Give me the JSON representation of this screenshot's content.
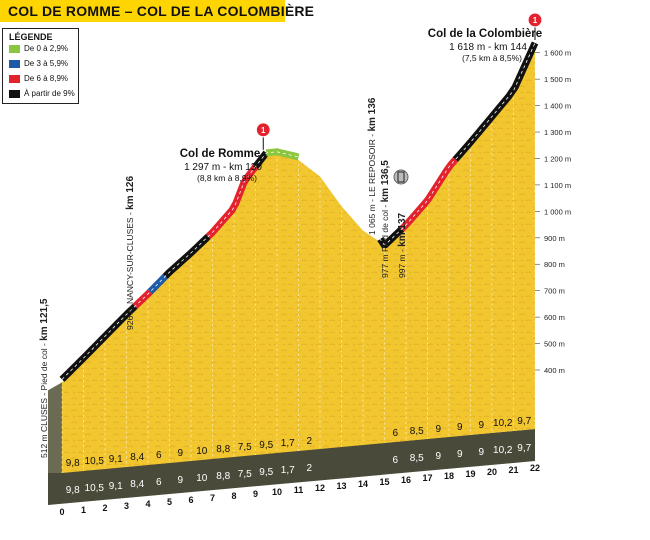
{
  "banner": {
    "title": "COL DE ROMME – COL DE LA COLOMBIÈRE",
    "color": "#fed500"
  },
  "legend": {
    "title": "LÉGENDE",
    "items": [
      {
        "label": "De 0 à 2,9%",
        "color": "#8cc63f"
      },
      {
        "label": "De 3 à 5,9%",
        "color": "#1d5aa8"
      },
      {
        "label": "De 6 à 8,9%",
        "color": "#e3222d"
      },
      {
        "label": "À partir de 9%",
        "color": "#111111"
      }
    ]
  },
  "chart_data": {
    "type": "area",
    "x": [
      0,
      1,
      2,
      3,
      4,
      5,
      6,
      7,
      8,
      8.5,
      9.5,
      10,
      11,
      12,
      13,
      14,
      14.8,
      15,
      16,
      17,
      18,
      19,
      20,
      21,
      22
    ],
    "y": [
      512,
      585,
      660,
      735,
      805,
      880,
      945,
      1015,
      1100,
      1200,
      1297,
      1297,
      1270,
      1200,
      1080,
      980,
      931,
      905,
      975,
      1060,
      1180,
      1265,
      1355,
      1445,
      1618
    ],
    "xticks": [
      "0",
      "1",
      "2",
      "3",
      "4",
      "5",
      "6",
      "7",
      "8",
      "9",
      "10",
      "11",
      "12",
      "13",
      "14",
      "15",
      "16",
      "17",
      "18",
      "19",
      "20",
      "21",
      "22"
    ],
    "yticks": [
      "400 m",
      "500 m",
      "600 m",
      "700 m",
      "800 m",
      "900 m",
      "1 000 m",
      "1 100 m",
      "1 200 m",
      "1 300 m",
      "1 400 m",
      "1 500 m",
      "1 600 m"
    ],
    "ylim": [
      400,
      1600
    ],
    "xlim": [
      0,
      22
    ],
    "gradients": [
      "9,8",
      "10,5",
      "9,1",
      "8,4",
      "6",
      "9",
      "10",
      "8,8",
      "7,5",
      "9,5",
      "1,7",
      "2",
      "",
      "",
      "",
      "6",
      "8,5",
      "9",
      "9",
      "9",
      "10,2",
      "9,7"
    ],
    "segment_colors": [
      {
        "from": 0,
        "to": 3.4,
        "color": "#111111"
      },
      {
        "from": 3.4,
        "to": 4.1,
        "color": "#e3222d"
      },
      {
        "from": 4.1,
        "to": 4.8,
        "color": "#1d5aa8"
      },
      {
        "from": 4.8,
        "to": 6.8,
        "color": "#111111"
      },
      {
        "from": 6.8,
        "to": 9.0,
        "color": "#e3222d"
      },
      {
        "from": 9.0,
        "to": 9.5,
        "color": "#111111"
      },
      {
        "from": 9.5,
        "to": 11.0,
        "color": "#8cc63f"
      },
      {
        "from": 14.8,
        "to": 15.8,
        "color": "#111111"
      },
      {
        "from": 15.8,
        "to": 18.3,
        "color": "#e3222d"
      },
      {
        "from": 18.3,
        "to": 22,
        "color": "#111111"
      }
    ],
    "summits": [
      {
        "name": "Col de Romme",
        "info": "1 297 m - km 130",
        "detail": "(8,8 km à 8,9%)",
        "km": 9.5,
        "badge": "1"
      },
      {
        "name": "Col de la Colombière",
        "info": "1 618 m - km 144",
        "detail": "(7,5 km à 8,5%)",
        "km": 22,
        "badge": "1"
      }
    ],
    "annotations": [
      {
        "km": 0,
        "prefix": "512 m CLUSES - Pied de col - ",
        "bold": "km 121,5"
      },
      {
        "km": 4,
        "prefix": "926 m NANCY-SUR-CLUSES - ",
        "bold": "km 126"
      },
      {
        "km": 14.5,
        "prefix": "1 065 m - LE REPOSOIR - ",
        "bold": "km 136"
      },
      {
        "km": 15,
        "prefix": "977 m Pied de col - ",
        "bold": "km 136,5"
      },
      {
        "km": 15.6,
        "prefix": "997 m - ",
        "bold": "km 137"
      }
    ],
    "colors": {
      "fill": "#f2c62f",
      "fill_light": "#f7d65a",
      "base": "#4a4a3a"
    }
  }
}
